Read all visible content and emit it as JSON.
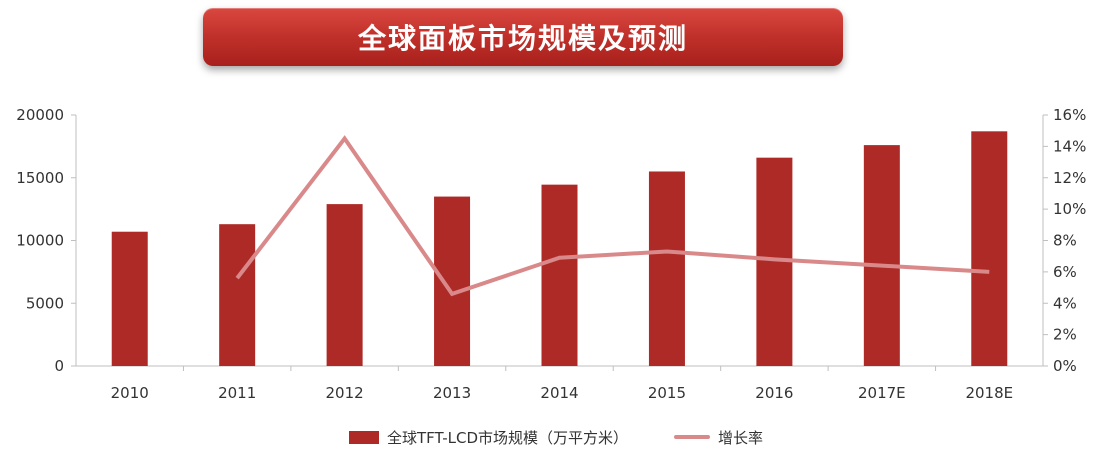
{
  "title": "全球面板市场规模及预测",
  "chart_data": {
    "type": "bar",
    "categories": [
      "2010",
      "2011",
      "2012",
      "2013",
      "2014",
      "2015",
      "2016",
      "2017E",
      "2018E"
    ],
    "series": [
      {
        "name": "全球TFT-LCD市场规模（万平方米）",
        "type": "bar",
        "axis": "left",
        "color": "#ad2a27",
        "values": [
          10700,
          11300,
          12900,
          13500,
          14450,
          15500,
          16600,
          17600,
          18700
        ]
      },
      {
        "name": "增长率",
        "type": "line",
        "axis": "right",
        "color": "#d9898a",
        "values": [
          null,
          5.6,
          14.5,
          4.6,
          6.9,
          7.3,
          6.8,
          6.4,
          6.0
        ]
      }
    ],
    "yleft": {
      "min": 0,
      "max": 20000,
      "ticks": [
        "0",
        "5000",
        "10000",
        "15000",
        "20000"
      ]
    },
    "yright": {
      "min": 0,
      "max": 16,
      "ticks": [
        "0%",
        "2%",
        "4%",
        "6%",
        "8%",
        "10%",
        "12%",
        "14%",
        "16%"
      ]
    },
    "grid": false,
    "legend_position": "bottom"
  },
  "legend": [
    {
      "label": "全球TFT-LCD市场规模（万平方米）",
      "kind": "bar"
    },
    {
      "label": "增长率",
      "kind": "line"
    }
  ]
}
